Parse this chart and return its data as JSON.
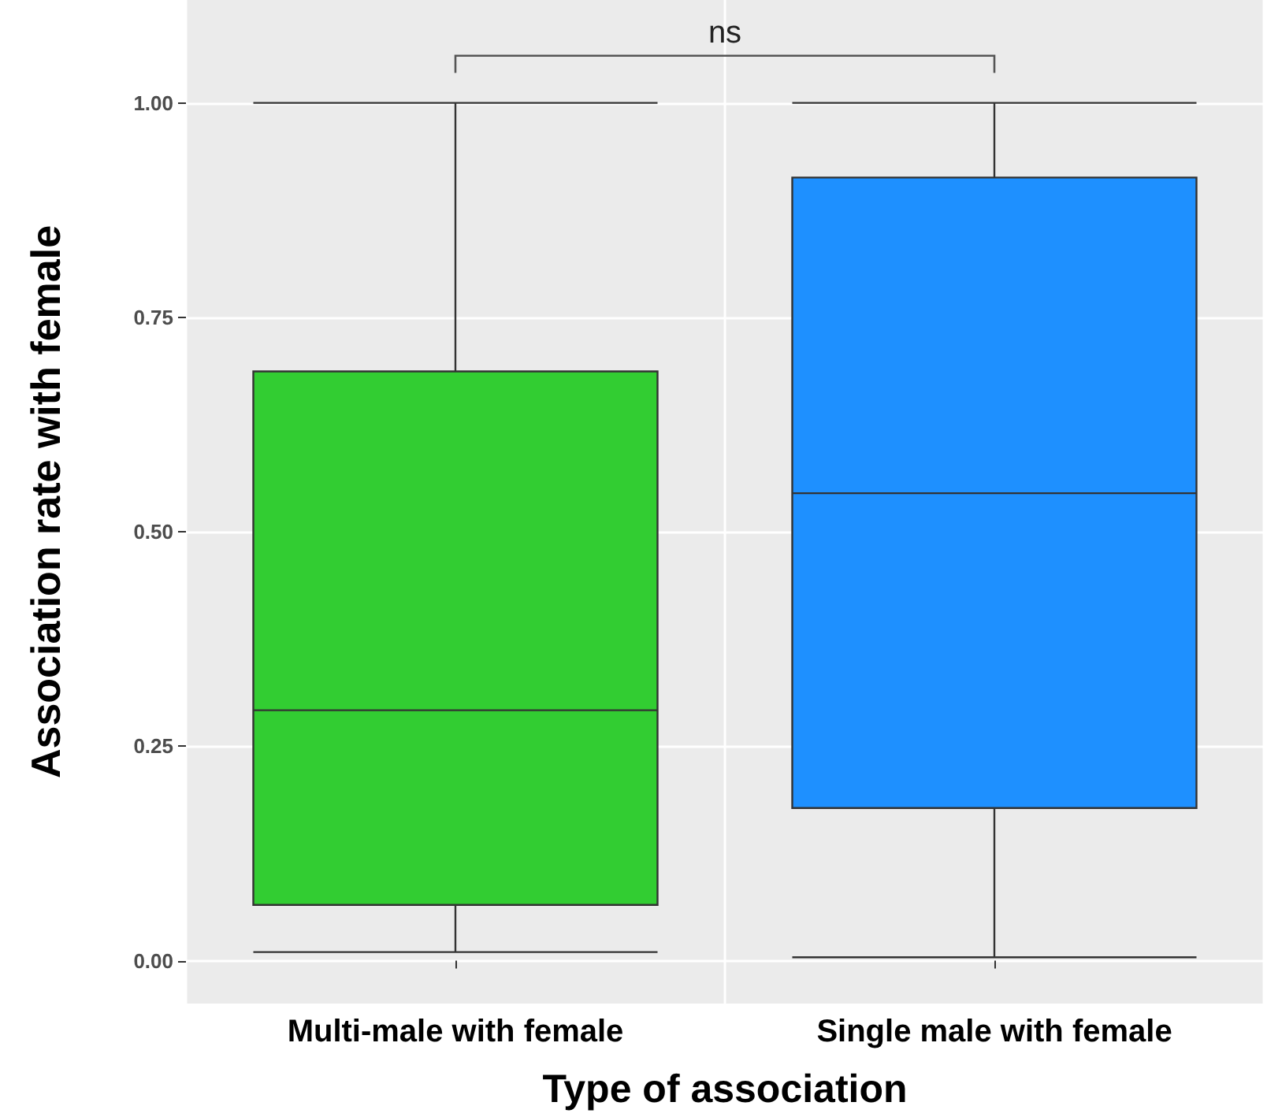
{
  "chart_data": {
    "type": "box",
    "xlabel": "Type of association",
    "ylabel": "Association rate with female",
    "categories": [
      "Multi-male with female",
      "Single male with female"
    ],
    "boxes": [
      {
        "low": 0.01,
        "q1": 0.065,
        "median": 0.292,
        "q3": 0.687,
        "high": 1.0
      },
      {
        "low": 0.004,
        "q1": 0.178,
        "median": 0.545,
        "q3": 0.913,
        "high": 1.0
      }
    ],
    "colors": [
      "#32cd32",
      "#1e90ff"
    ],
    "ylim": [
      -0.05,
      1.12
    ],
    "yticks": [
      {
        "value": 0,
        "label": "0.00"
      },
      {
        "value": 0.25,
        "label": "0.25"
      },
      {
        "value": 0.5,
        "label": "0.50"
      },
      {
        "value": 0.75,
        "label": "0.75"
      },
      {
        "value": 1,
        "label": "1.00"
      }
    ],
    "grid": true,
    "annotations": [
      "ns"
    ]
  }
}
